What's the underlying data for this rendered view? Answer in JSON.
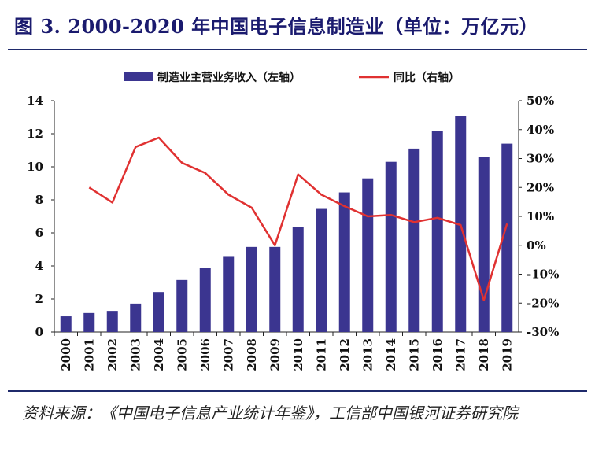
{
  "title": "图 3. 2000-2020 年中国电子信息制造业（单位：万亿元）",
  "source": "资料来源：《中国电子信息产业统计年鉴》，工信部中国银河证券研究院",
  "colors": {
    "bar": "#3b3590",
    "line": "#e03131",
    "title": "#1a1a6e",
    "rule": "#1f2a6b"
  },
  "chart_data": {
    "type": "bar+line",
    "categories": [
      "2000",
      "2001",
      "2002",
      "2003",
      "2004",
      "2005",
      "2006",
      "2007",
      "2008",
      "2009",
      "2010",
      "2011",
      "2012",
      "2013",
      "2014",
      "2015",
      "2016",
      "2017",
      "2018",
      "2019"
    ],
    "series": [
      {
        "name": "制造业主营业务收入（左轴）",
        "type": "bar",
        "axis": "left",
        "values": [
          0.95,
          1.15,
          1.28,
          1.72,
          2.42,
          3.15,
          3.88,
          4.55,
          5.15,
          5.15,
          6.35,
          7.45,
          8.45,
          9.3,
          10.3,
          11.1,
          12.15,
          13.05,
          10.6,
          11.4
        ]
      },
      {
        "name": "同比（右轴）",
        "type": "line",
        "axis": "right",
        "values": [
          null,
          20,
          14.8,
          34,
          37.2,
          28.5,
          25,
          17.5,
          13,
          0,
          24.5,
          17.5,
          13.5,
          10,
          10.5,
          8,
          9.5,
          7,
          -19,
          7.5
        ]
      }
    ],
    "left_axis": {
      "min": 0,
      "max": 14,
      "ticks": [
        "0",
        "2",
        "4",
        "6",
        "8",
        "10",
        "12",
        "14"
      ]
    },
    "right_axis": {
      "min": -30,
      "max": 50,
      "ticks": [
        "-30%",
        "-20%",
        "-10%",
        "0%",
        "10%",
        "20%",
        "30%",
        "40%",
        "50%"
      ]
    },
    "legend_position": "top-center",
    "grid": false
  }
}
